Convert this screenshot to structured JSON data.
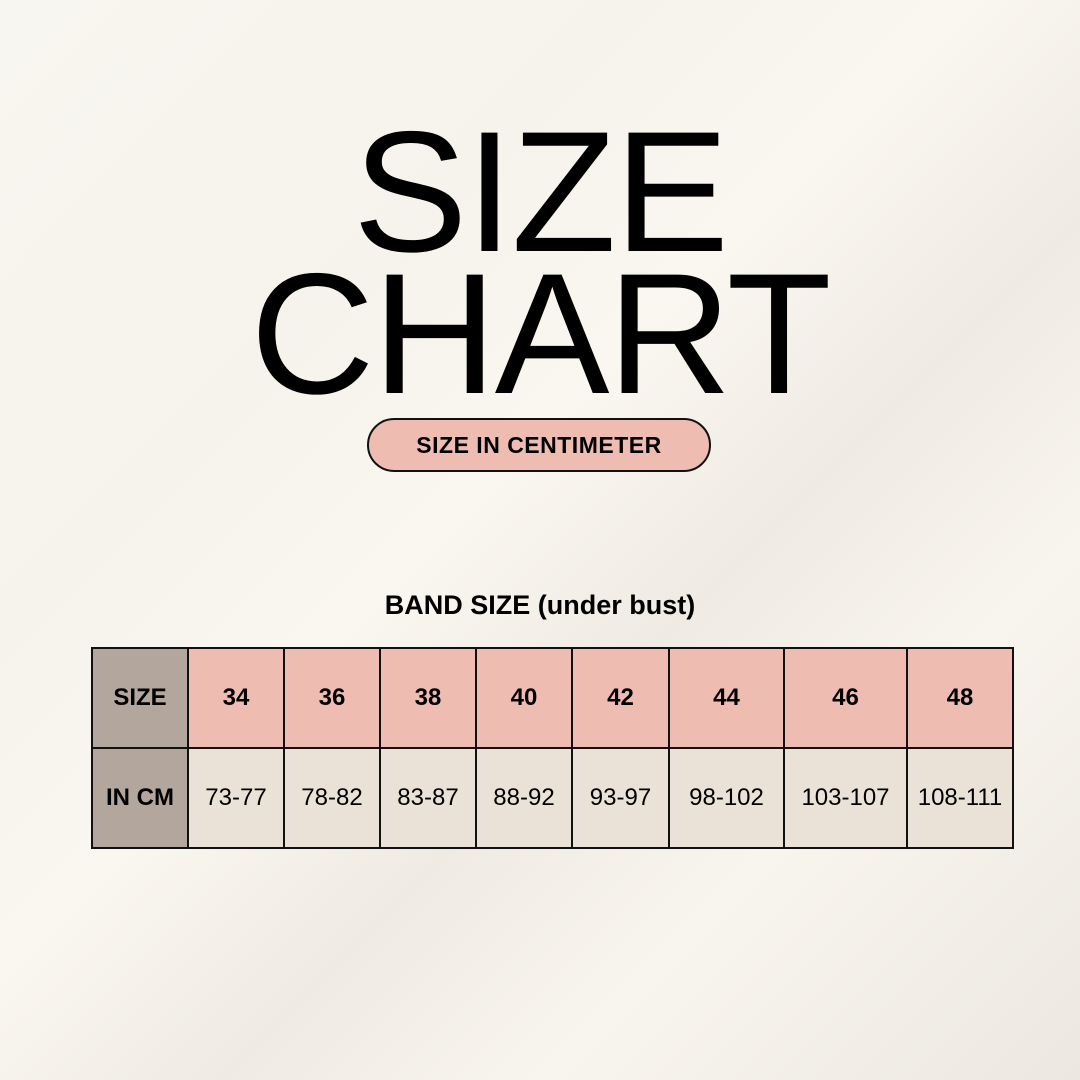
{
  "title": {
    "line1": "SIZE",
    "line2": "CHART"
  },
  "unit_badge": "SIZE IN CENTIMETER",
  "table_caption": "BAND SIZE (under bust)",
  "table": {
    "row_headers": [
      "SIZE",
      "IN CM"
    ],
    "sizes": [
      "34",
      "36",
      "38",
      "40",
      "42",
      "44",
      "46",
      "48"
    ],
    "cm_ranges": [
      "73-77",
      "78-82",
      "83-87",
      "88-92",
      "93-97",
      "98-102",
      "103-107",
      "108-111"
    ]
  },
  "colors": {
    "header_cell": "#b3a69d",
    "size_cell": "#eebcb0",
    "cm_cell": "#eae2d7",
    "background": "#f8f6f0"
  }
}
